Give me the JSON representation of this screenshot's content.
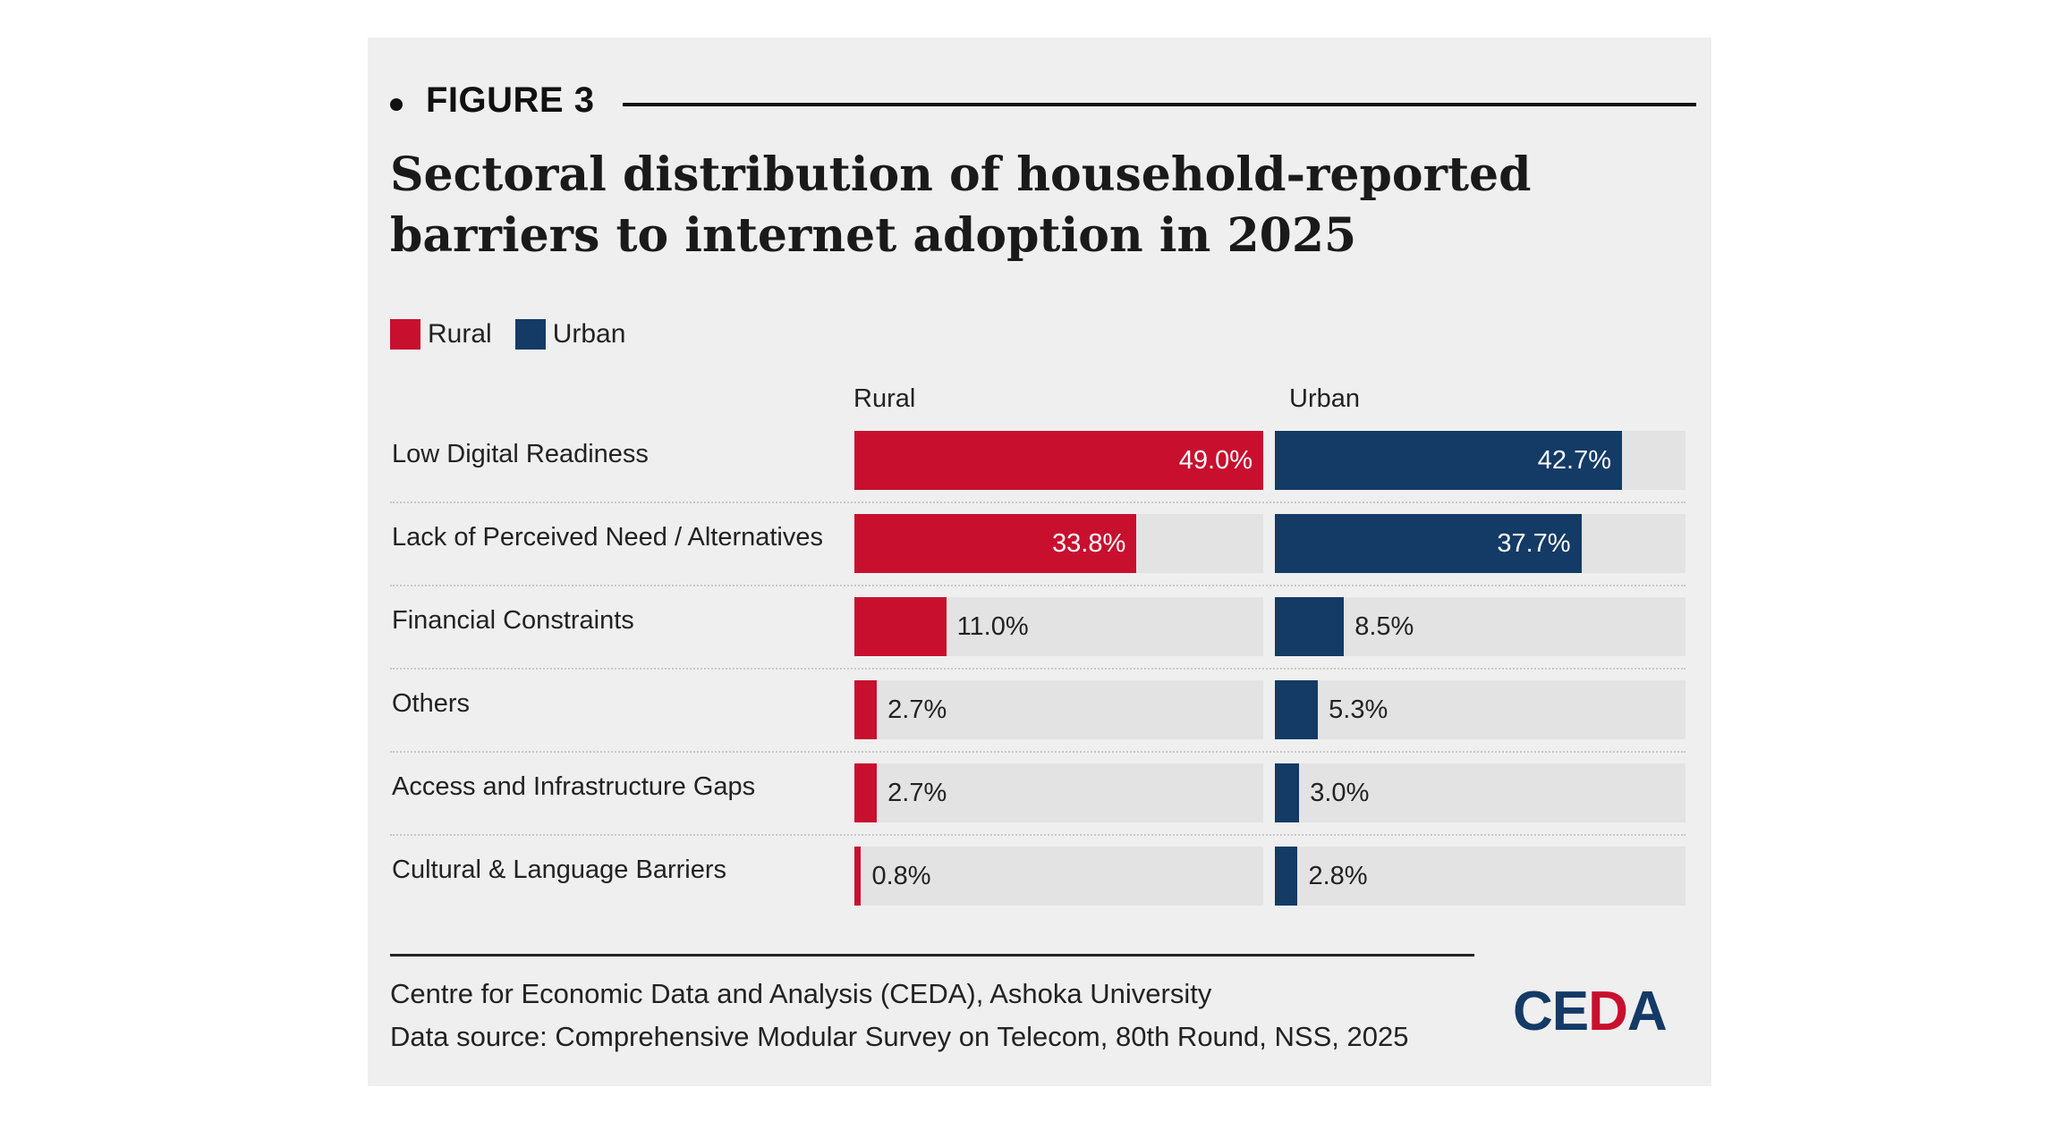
{
  "figure_label": "FIGURE 3",
  "title": "Sectoral distribution of household-reported barriers to internet adoption in 2025",
  "colors": {
    "rural": "#c8102e",
    "urban": "#143a66",
    "track": "#e3e3e3"
  },
  "legend": [
    {
      "label": "Rural",
      "color": "#c8102e"
    },
    {
      "label": "Urban",
      "color": "#143a66"
    }
  ],
  "columns": {
    "rural": "Rural",
    "urban": "Urban"
  },
  "chart_data": {
    "type": "bar",
    "orientation": "horizontal",
    "title": "Sectoral distribution of household-reported barriers to internet adoption in 2025",
    "categories": [
      "Low Digital Readiness",
      "Lack of Perceived Need / Alternatives",
      "Financial Constraints",
      "Others",
      "Access and Infrastructure Gaps",
      "Cultural & Language Barriers"
    ],
    "series": [
      {
        "name": "Rural",
        "values": [
          49.0,
          33.8,
          11.0,
          2.7,
          2.7,
          0.8
        ],
        "labels": [
          "49.0%",
          "33.8%",
          "11.0%",
          "2.7%",
          "2.7%",
          "0.8%"
        ]
      },
      {
        "name": "Urban",
        "values": [
          42.7,
          37.7,
          8.5,
          5.3,
          3.0,
          2.8
        ],
        "labels": [
          "42.7%",
          "37.7%",
          "8.5%",
          "5.3%",
          "3.0%",
          "2.8%"
        ]
      }
    ],
    "xlim": [
      0,
      49
    ],
    "unit": "%"
  },
  "footer": {
    "line1": "Centre for Economic Data and Analysis (CEDA), Ashoka University",
    "line2": "Data source: Comprehensive Modular Survey on Telecom, 80th Round, NSS, 2025"
  },
  "logo": {
    "part1": "CE",
    "part2": "D",
    "part3": "A"
  }
}
